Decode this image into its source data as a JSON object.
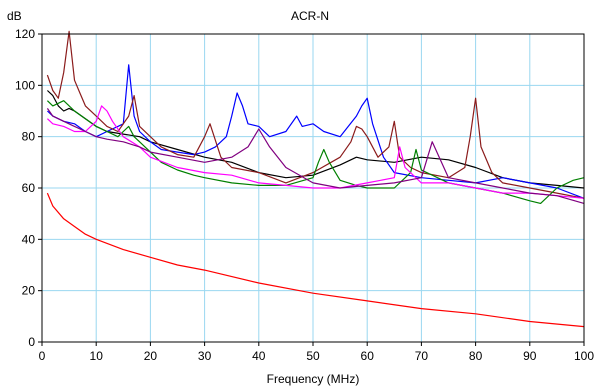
{
  "chart_data": {
    "type": "line",
    "title": "ACR-N",
    "xlabel": "Frequency (MHz)",
    "ylabel": "dB",
    "xlim": [
      0,
      100
    ],
    "ylim": [
      0,
      120
    ],
    "xticks": [
      0,
      10,
      20,
      30,
      40,
      50,
      60,
      70,
      80,
      90,
      100
    ],
    "yticks": [
      0,
      20,
      40,
      60,
      80,
      100,
      120
    ],
    "grid": true,
    "legend": "none",
    "colors": {
      "background": "#ffffff",
      "grid": "#9ad7f0",
      "frame": "#000000"
    },
    "series": [
      {
        "color": "#ff0000",
        "x": [
          1,
          2,
          4,
          6,
          8,
          10,
          15,
          20,
          25,
          30,
          40,
          50,
          60,
          70,
          80,
          90,
          100
        ],
        "y": [
          58,
          53,
          48,
          45,
          42,
          40,
          36,
          33,
          30,
          28,
          23,
          19,
          16,
          13,
          11,
          8,
          6
        ]
      },
      {
        "color": "#000000",
        "x": [
          1,
          2,
          3,
          4,
          5,
          6,
          8,
          10,
          12,
          15,
          18,
          20,
          25,
          30,
          35,
          40,
          45,
          50,
          55,
          58,
          60,
          65,
          70,
          75,
          80,
          85,
          90,
          95,
          100
        ],
        "y": [
          98,
          96,
          92,
          90,
          91,
          90,
          87,
          84,
          82,
          81,
          80,
          78,
          75,
          72,
          70,
          66,
          64,
          65,
          69,
          72,
          71,
          70,
          72,
          71,
          68,
          64,
          62,
          61,
          60
        ]
      },
      {
        "color": "#0000ff",
        "x": [
          1,
          2,
          4,
          6,
          8,
          10,
          12,
          14,
          15,
          16,
          17,
          18,
          20,
          22,
          25,
          28,
          30,
          32,
          34,
          35,
          36,
          37,
          38,
          40,
          42,
          45,
          47,
          48,
          50,
          52,
          55,
          58,
          59,
          60,
          61,
          63,
          65,
          70,
          75,
          80,
          85,
          90,
          95,
          100
        ],
        "y": [
          90,
          88,
          86,
          85,
          82,
          80,
          82,
          84,
          85,
          108,
          88,
          82,
          78,
          75,
          74,
          73,
          74,
          76,
          80,
          88,
          97,
          92,
          85,
          84,
          80,
          82,
          88,
          84,
          85,
          82,
          80,
          88,
          92,
          95,
          85,
          72,
          66,
          64,
          63,
          62,
          64,
          62,
          60,
          56
        ]
      },
      {
        "color": "#8b1c1c",
        "x": [
          1,
          2,
          3,
          4,
          5,
          6,
          7,
          8,
          10,
          12,
          14,
          16,
          17,
          18,
          20,
          22,
          25,
          28,
          30,
          31,
          33,
          35,
          40,
          45,
          50,
          55,
          57,
          58,
          59,
          60,
          62,
          64,
          65,
          66,
          68,
          70,
          75,
          78,
          79,
          80,
          81,
          83,
          85,
          90,
          95,
          100
        ],
        "y": [
          104,
          98,
          95,
          105,
          121,
          102,
          97,
          92,
          88,
          84,
          82,
          88,
          96,
          84,
          80,
          76,
          73,
          72,
          80,
          85,
          72,
          68,
          66,
          62,
          66,
          72,
          78,
          84,
          83,
          80,
          72,
          76,
          86,
          72,
          68,
          66,
          64,
          68,
          80,
          95,
          76,
          66,
          62,
          60,
          58,
          56
        ]
      },
      {
        "color": "#008000",
        "x": [
          1,
          2,
          4,
          6,
          8,
          10,
          12,
          14,
          15,
          16,
          17,
          18,
          20,
          22,
          25,
          28,
          30,
          35,
          40,
          45,
          50,
          51,
          52,
          53,
          55,
          58,
          60,
          65,
          68,
          69,
          70,
          75,
          80,
          85,
          90,
          92,
          95,
          98,
          100
        ],
        "y": [
          94,
          92,
          94,
          90,
          87,
          84,
          82,
          80,
          82,
          84,
          80,
          78,
          74,
          70,
          67,
          65,
          64,
          62,
          61,
          61,
          64,
          70,
          75,
          70,
          63,
          61,
          60,
          60,
          66,
          75,
          67,
          62,
          60,
          58,
          55,
          54,
          60,
          63,
          64
        ]
      },
      {
        "color": "#ff00ff",
        "x": [
          1,
          2,
          4,
          6,
          8,
          10,
          11,
          12,
          13,
          15,
          18,
          20,
          25,
          30,
          35,
          40,
          45,
          50,
          55,
          60,
          65,
          66,
          67,
          70,
          75,
          80,
          85,
          90,
          95,
          100
        ],
        "y": [
          87,
          85,
          84,
          82,
          82,
          86,
          92,
          90,
          86,
          80,
          76,
          72,
          68,
          66,
          65,
          62,
          61,
          60,
          60,
          62,
          64,
          76,
          68,
          62,
          62,
          60,
          58,
          58,
          57,
          56
        ]
      },
      {
        "color": "#800080",
        "x": [
          1,
          2,
          4,
          6,
          8,
          10,
          12,
          15,
          18,
          20,
          25,
          30,
          35,
          38,
          40,
          42,
          45,
          50,
          55,
          60,
          65,
          70,
          72,
          75,
          80,
          85,
          90,
          95,
          100
        ],
        "y": [
          91,
          88,
          86,
          84,
          82,
          80,
          79,
          78,
          76,
          74,
          72,
          70,
          72,
          76,
          83,
          76,
          68,
          62,
          60,
          61,
          62,
          64,
          78,
          64,
          62,
          60,
          58,
          57,
          54
        ]
      }
    ]
  }
}
